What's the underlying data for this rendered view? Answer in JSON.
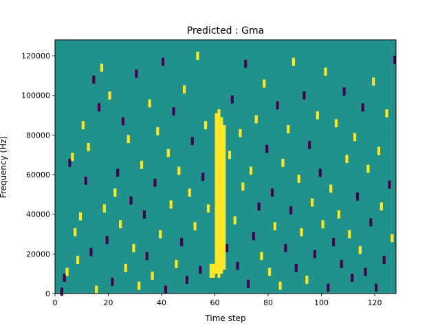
{
  "chart_data": {
    "type": "heatmap",
    "title": "Predicted : Gma",
    "xlabel": "Time step",
    "ylabel": "Frequency (Hz)",
    "xlim": [
      0,
      128
    ],
    "ylim": [
      0,
      128000
    ],
    "xticks": [
      0,
      20,
      40,
      60,
      80,
      100,
      120
    ],
    "yticks": [
      0,
      20000,
      40000,
      60000,
      80000,
      100000,
      120000
    ],
    "xtick_labels": [
      "0",
      "20",
      "40",
      "60",
      "80",
      "100",
      "120"
    ],
    "ytick_labels": [
      "0",
      "20000",
      "40000",
      "60000",
      "80000",
      "100000",
      "120000"
    ],
    "grid": false,
    "colorbar": false,
    "n_cols": 128,
    "n_rows": 128,
    "value_levels": [
      -1,
      0,
      1
    ],
    "colormap": {
      "-1": "#440154",
      "0": "#21918c",
      "1": "#fde725"
    },
    "background_value": 0,
    "bright_band": {
      "value": 1,
      "runs": [
        {
          "x": 58,
          "y0": 8,
          "y1": 14
        },
        {
          "x": 59,
          "y0": 8,
          "y1": 14
        },
        {
          "x": 60,
          "y0": 10,
          "y1": 90
        },
        {
          "x": 61,
          "y0": 8,
          "y1": 92
        },
        {
          "x": 62,
          "y0": 10,
          "y1": 88
        },
        {
          "x": 63,
          "y0": 12,
          "y1": 84
        }
      ]
    },
    "cells": [
      {
        "x": 2,
        "y": 2,
        "v": -1
      },
      {
        "x": 3,
        "y": 9,
        "v": -1
      },
      {
        "x": 4,
        "y": 12,
        "v": 1
      },
      {
        "x": 5,
        "y": 67,
        "v": -1
      },
      {
        "x": 6,
        "y": 70,
        "v": 1
      },
      {
        "x": 7,
        "y": 32,
        "v": 1
      },
      {
        "x": 8,
        "y": 18,
        "v": 1
      },
      {
        "x": 9,
        "y": 40,
        "v": 1
      },
      {
        "x": 10,
        "y": 86,
        "v": 1
      },
      {
        "x": 11,
        "y": 58,
        "v": -1
      },
      {
        "x": 12,
        "y": 75,
        "v": 1
      },
      {
        "x": 13,
        "y": 22,
        "v": -1
      },
      {
        "x": 14,
        "y": 109,
        "v": -1
      },
      {
        "x": 15,
        "y": 3,
        "v": 1
      },
      {
        "x": 16,
        "y": 95,
        "v": -1
      },
      {
        "x": 17,
        "y": 115,
        "v": 1
      },
      {
        "x": 18,
        "y": 44,
        "v": 1
      },
      {
        "x": 19,
        "y": 28,
        "v": -1
      },
      {
        "x": 20,
        "y": 101,
        "v": 1
      },
      {
        "x": 21,
        "y": 7,
        "v": -1
      },
      {
        "x": 22,
        "y": 52,
        "v": 1
      },
      {
        "x": 23,
        "y": 62,
        "v": -1
      },
      {
        "x": 24,
        "y": 36,
        "v": 1
      },
      {
        "x": 25,
        "y": 88,
        "v": -1
      },
      {
        "x": 26,
        "y": 14,
        "v": 1
      },
      {
        "x": 27,
        "y": 79,
        "v": 1
      },
      {
        "x": 28,
        "y": 48,
        "v": -1
      },
      {
        "x": 29,
        "y": 24,
        "v": 1
      },
      {
        "x": 30,
        "y": 112,
        "v": -1
      },
      {
        "x": 31,
        "y": 5,
        "v": 1
      },
      {
        "x": 32,
        "y": 66,
        "v": 1
      },
      {
        "x": 33,
        "y": 41,
        "v": -1
      },
      {
        "x": 34,
        "y": 20,
        "v": -1
      },
      {
        "x": 35,
        "y": 97,
        "v": 1
      },
      {
        "x": 36,
        "y": 10,
        "v": 1
      },
      {
        "x": 37,
        "y": 57,
        "v": -1
      },
      {
        "x": 38,
        "y": 83,
        "v": 1
      },
      {
        "x": 39,
        "y": 31,
        "v": 1
      },
      {
        "x": 40,
        "y": 118,
        "v": -1
      },
      {
        "x": 41,
        "y": 3,
        "v": -1
      },
      {
        "x": 42,
        "y": 72,
        "v": 1
      },
      {
        "x": 43,
        "y": 46,
        "v": 1
      },
      {
        "x": 44,
        "y": 93,
        "v": -1
      },
      {
        "x": 45,
        "y": 16,
        "v": 1
      },
      {
        "x": 46,
        "y": 63,
        "v": 1
      },
      {
        "x": 47,
        "y": 27,
        "v": -1
      },
      {
        "x": 48,
        "y": 104,
        "v": 1
      },
      {
        "x": 49,
        "y": 8,
        "v": -1
      },
      {
        "x": 50,
        "y": 52,
        "v": 1
      },
      {
        "x": 51,
        "y": 78,
        "v": -1
      },
      {
        "x": 52,
        "y": 35,
        "v": 1
      },
      {
        "x": 53,
        "y": 121,
        "v": 1
      },
      {
        "x": 54,
        "y": 13,
        "v": -1
      },
      {
        "x": 55,
        "y": 60,
        "v": -1
      },
      {
        "x": 56,
        "y": 86,
        "v": 1
      },
      {
        "x": 57,
        "y": 44,
        "v": 1
      },
      {
        "x": 64,
        "y": 24,
        "v": -1
      },
      {
        "x": 65,
        "y": 71,
        "v": 1
      },
      {
        "x": 66,
        "y": 99,
        "v": -1
      },
      {
        "x": 67,
        "y": 38,
        "v": 1
      },
      {
        "x": 68,
        "y": 15,
        "v": -1
      },
      {
        "x": 69,
        "y": 82,
        "v": 1
      },
      {
        "x": 70,
        "y": 55,
        "v": 1
      },
      {
        "x": 71,
        "y": 117,
        "v": -1
      },
      {
        "x": 72,
        "y": 6,
        "v": -1
      },
      {
        "x": 73,
        "y": 63,
        "v": 1
      },
      {
        "x": 74,
        "y": 30,
        "v": -1
      },
      {
        "x": 75,
        "y": 89,
        "v": 1
      },
      {
        "x": 76,
        "y": 45,
        "v": -1
      },
      {
        "x": 77,
        "y": 20,
        "v": 1
      },
      {
        "x": 78,
        "y": 107,
        "v": 1
      },
      {
        "x": 79,
        "y": 74,
        "v": -1
      },
      {
        "x": 80,
        "y": 12,
        "v": 1
      },
      {
        "x": 81,
        "y": 52,
        "v": -1
      },
      {
        "x": 82,
        "y": 35,
        "v": 1
      },
      {
        "x": 83,
        "y": 96,
        "v": -1
      },
      {
        "x": 84,
        "y": 5,
        "v": 1
      },
      {
        "x": 85,
        "y": 67,
        "v": 1
      },
      {
        "x": 86,
        "y": 24,
        "v": -1
      },
      {
        "x": 87,
        "y": 84,
        "v": 1
      },
      {
        "x": 88,
        "y": 43,
        "v": -1
      },
      {
        "x": 89,
        "y": 118,
        "v": 1
      },
      {
        "x": 90,
        "y": 14,
        "v": -1
      },
      {
        "x": 91,
        "y": 59,
        "v": 1
      },
      {
        "x": 92,
        "y": 32,
        "v": 1
      },
      {
        "x": 93,
        "y": 101,
        "v": -1
      },
      {
        "x": 94,
        "y": 8,
        "v": 1
      },
      {
        "x": 95,
        "y": 76,
        "v": -1
      },
      {
        "x": 96,
        "y": 47,
        "v": 1
      },
      {
        "x": 97,
        "y": 21,
        "v": -1
      },
      {
        "x": 98,
        "y": 91,
        "v": 1
      },
      {
        "x": 99,
        "y": 62,
        "v": -1
      },
      {
        "x": 100,
        "y": 36,
        "v": 1
      },
      {
        "x": 101,
        "y": 113,
        "v": 1
      },
      {
        "x": 102,
        "y": 4,
        "v": -1
      },
      {
        "x": 103,
        "y": 54,
        "v": 1
      },
      {
        "x": 104,
        "y": 27,
        "v": -1
      },
      {
        "x": 105,
        "y": 87,
        "v": 1
      },
      {
        "x": 106,
        "y": 41,
        "v": 1
      },
      {
        "x": 107,
        "y": 16,
        "v": -1
      },
      {
        "x": 108,
        "y": 103,
        "v": -1
      },
      {
        "x": 109,
        "y": 69,
        "v": 1
      },
      {
        "x": 110,
        "y": 31,
        "v": 1
      },
      {
        "x": 111,
        "y": 9,
        "v": -1
      },
      {
        "x": 112,
        "y": 80,
        "v": 1
      },
      {
        "x": 113,
        "y": 50,
        "v": -1
      },
      {
        "x": 114,
        "y": 23,
        "v": 1
      },
      {
        "x": 115,
        "y": 95,
        "v": -1
      },
      {
        "x": 116,
        "y": 12,
        "v": -1
      },
      {
        "x": 117,
        "y": 64,
        "v": 1
      },
      {
        "x": 118,
        "y": 37,
        "v": -1
      },
      {
        "x": 119,
        "y": 108,
        "v": 1
      },
      {
        "x": 120,
        "y": 4,
        "v": -1
      },
      {
        "x": 121,
        "y": 73,
        "v": 1
      },
      {
        "x": 122,
        "y": 45,
        "v": 1
      },
      {
        "x": 123,
        "y": 18,
        "v": -1
      },
      {
        "x": 124,
        "y": 92,
        "v": 1
      },
      {
        "x": 125,
        "y": 56,
        "v": -1
      },
      {
        "x": 126,
        "y": 29,
        "v": 1
      },
      {
        "x": 127,
        "y": 119,
        "v": -1
      }
    ]
  }
}
